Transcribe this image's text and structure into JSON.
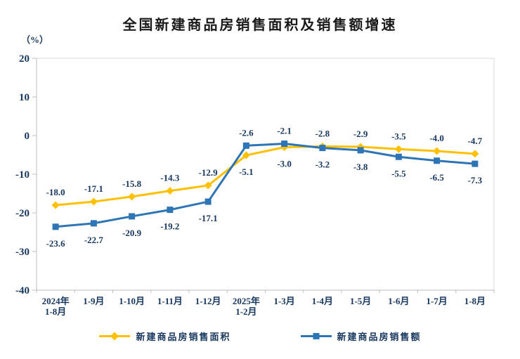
{
  "title": "全国新建商品房销售面积及销售额增速",
  "y_axis_unit": "（%）",
  "chart_data": {
    "type": "line",
    "categories": [
      "2024年\n1-8月",
      "1-9月",
      "1-10月",
      "1-11月",
      "1-12月",
      "2025年\n1-2月",
      "1-3月",
      "1-4月",
      "1-5月",
      "1-6月",
      "1-7月",
      "1-8月"
    ],
    "series": [
      {
        "name": "新建商品房销售面积",
        "color": "#FFC000",
        "marker": "diamond",
        "values": [
          -18.0,
          -17.1,
          -15.8,
          -14.3,
          -12.9,
          -5.1,
          -3.0,
          -2.8,
          -2.9,
          -3.5,
          -4.0,
          -4.7
        ],
        "label_positions": [
          "above",
          "above",
          "above",
          "above",
          "above",
          "below",
          "below",
          "above",
          "above",
          "above",
          "above",
          "above"
        ]
      },
      {
        "name": "新建商品房销售额",
        "color": "#2E75B6",
        "marker": "square",
        "values": [
          -23.6,
          -22.7,
          -20.9,
          -19.2,
          -17.1,
          -2.6,
          -2.1,
          -3.2,
          -3.8,
          -5.5,
          -6.5,
          -7.3
        ],
        "label_positions": [
          "below",
          "below",
          "below",
          "below",
          "below",
          "above",
          "above",
          "below",
          "below",
          "below",
          "below",
          "below"
        ]
      }
    ],
    "ylim": [
      -40,
      20
    ],
    "yticks": [
      20,
      10,
      0,
      -10,
      -20,
      -30,
      -40
    ],
    "grid": false,
    "legend_position": "bottom",
    "axis_color": "#BDBDBD",
    "border_color": "#D9D9D9",
    "label_color": "#17375E"
  }
}
